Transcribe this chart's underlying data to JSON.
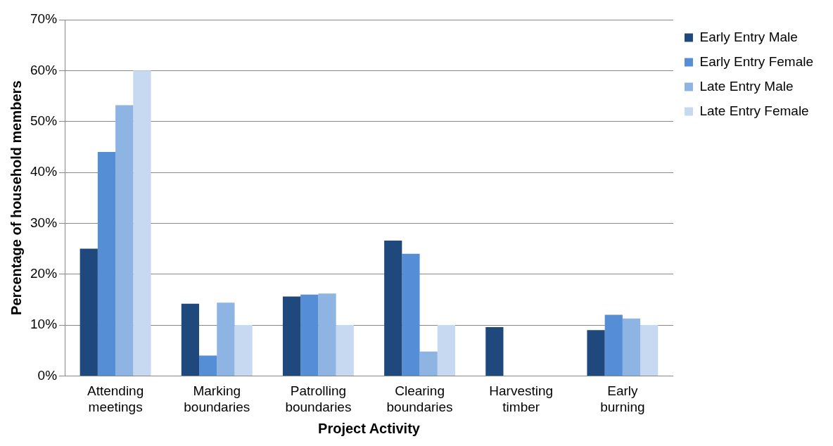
{
  "chart_data": {
    "type": "bar",
    "xlabel": "Project Activity",
    "ylabel": "Percentage of household members",
    "categories": [
      "Attending meetings",
      "Marking boundaries",
      "Patrolling boundaries",
      "Clearing boundaries",
      "Harvesting timber",
      "Early burning"
    ],
    "series": [
      {
        "name": "Early Entry Male",
        "color": "#1f497d",
        "values": [
          25,
          14.2,
          15.6,
          26.6,
          9.6,
          9
        ]
      },
      {
        "name": "Early Entry Female",
        "color": "#558ed5",
        "values": [
          44,
          4,
          16,
          24,
          0,
          12
        ]
      },
      {
        "name": "Late Entry Male",
        "color": "#8eb4e3",
        "values": [
          53.2,
          14.4,
          16.2,
          4.8,
          0,
          11.3
        ]
      },
      {
        "name": "Late Entry Female",
        "color": "#c6d9f1",
        "values": [
          60,
          10,
          10,
          10,
          0,
          10
        ]
      }
    ],
    "ylim": [
      0,
      70
    ],
    "yticks": [
      {
        "value": 0,
        "label": "0%"
      },
      {
        "value": 10,
        "label": "10%"
      },
      {
        "value": 20,
        "label": "20%"
      },
      {
        "value": 30,
        "label": "30%"
      },
      {
        "value": 40,
        "label": "40%"
      },
      {
        "value": 50,
        "label": "50%"
      },
      {
        "value": 60,
        "label": "60%"
      },
      {
        "value": 70,
        "label": "70%"
      }
    ],
    "grid": "y",
    "legend": "top right"
  }
}
